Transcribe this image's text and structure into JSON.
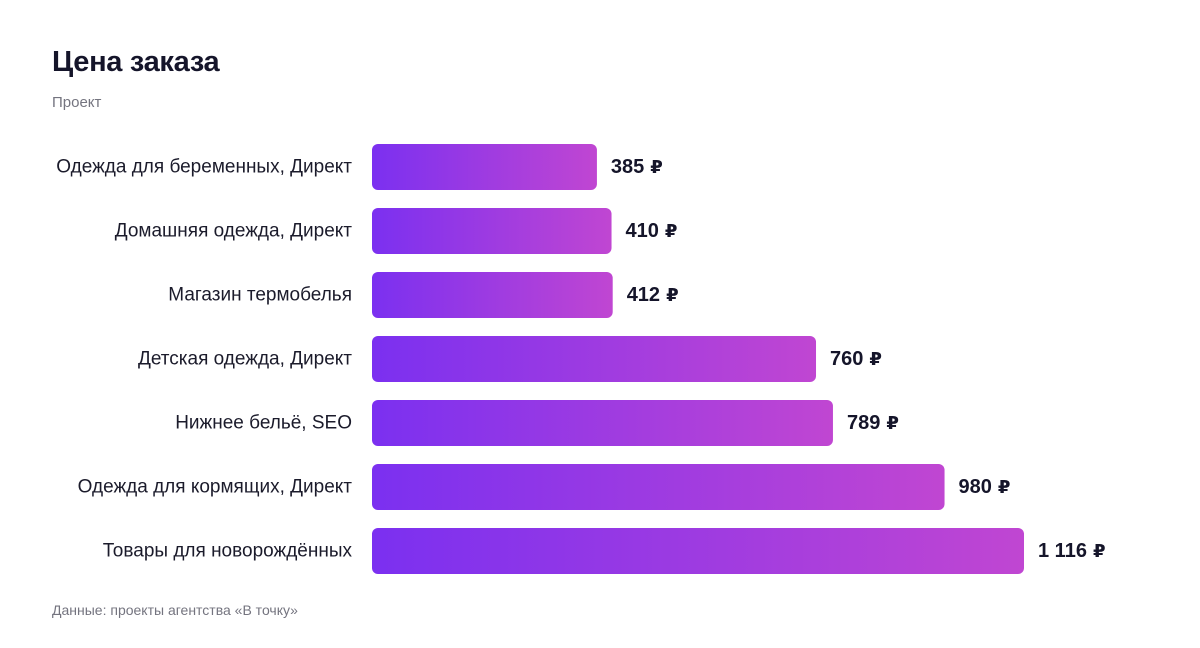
{
  "chart_data": {
    "type": "bar",
    "orientation": "horizontal",
    "title": "Цена заказа",
    "subtitle": "Проект",
    "footnote": "Данные: проекты агентства «В точку»",
    "unit": "₽",
    "categories": [
      "Одежда для беременных, Директ",
      "Домашняя одежда, Директ",
      "Магазин термобелья",
      "Детская одежда, Директ",
      "Нижнее бельё, SEO",
      "Одежда для кормящих, Директ",
      "Товары для новорождённых"
    ],
    "values": [
      385,
      410,
      412,
      760,
      789,
      980,
      1116
    ],
    "value_labels": [
      "385",
      "410",
      "412",
      "760",
      "789",
      "980",
      "1 116"
    ],
    "xlim": [
      0,
      1116
    ],
    "grid": false,
    "legend": "none",
    "colors": {
      "bar_start": "#7b30f0",
      "bar_end": "#c046d2",
      "text": "#15152a",
      "muted": "#74747f"
    }
  }
}
